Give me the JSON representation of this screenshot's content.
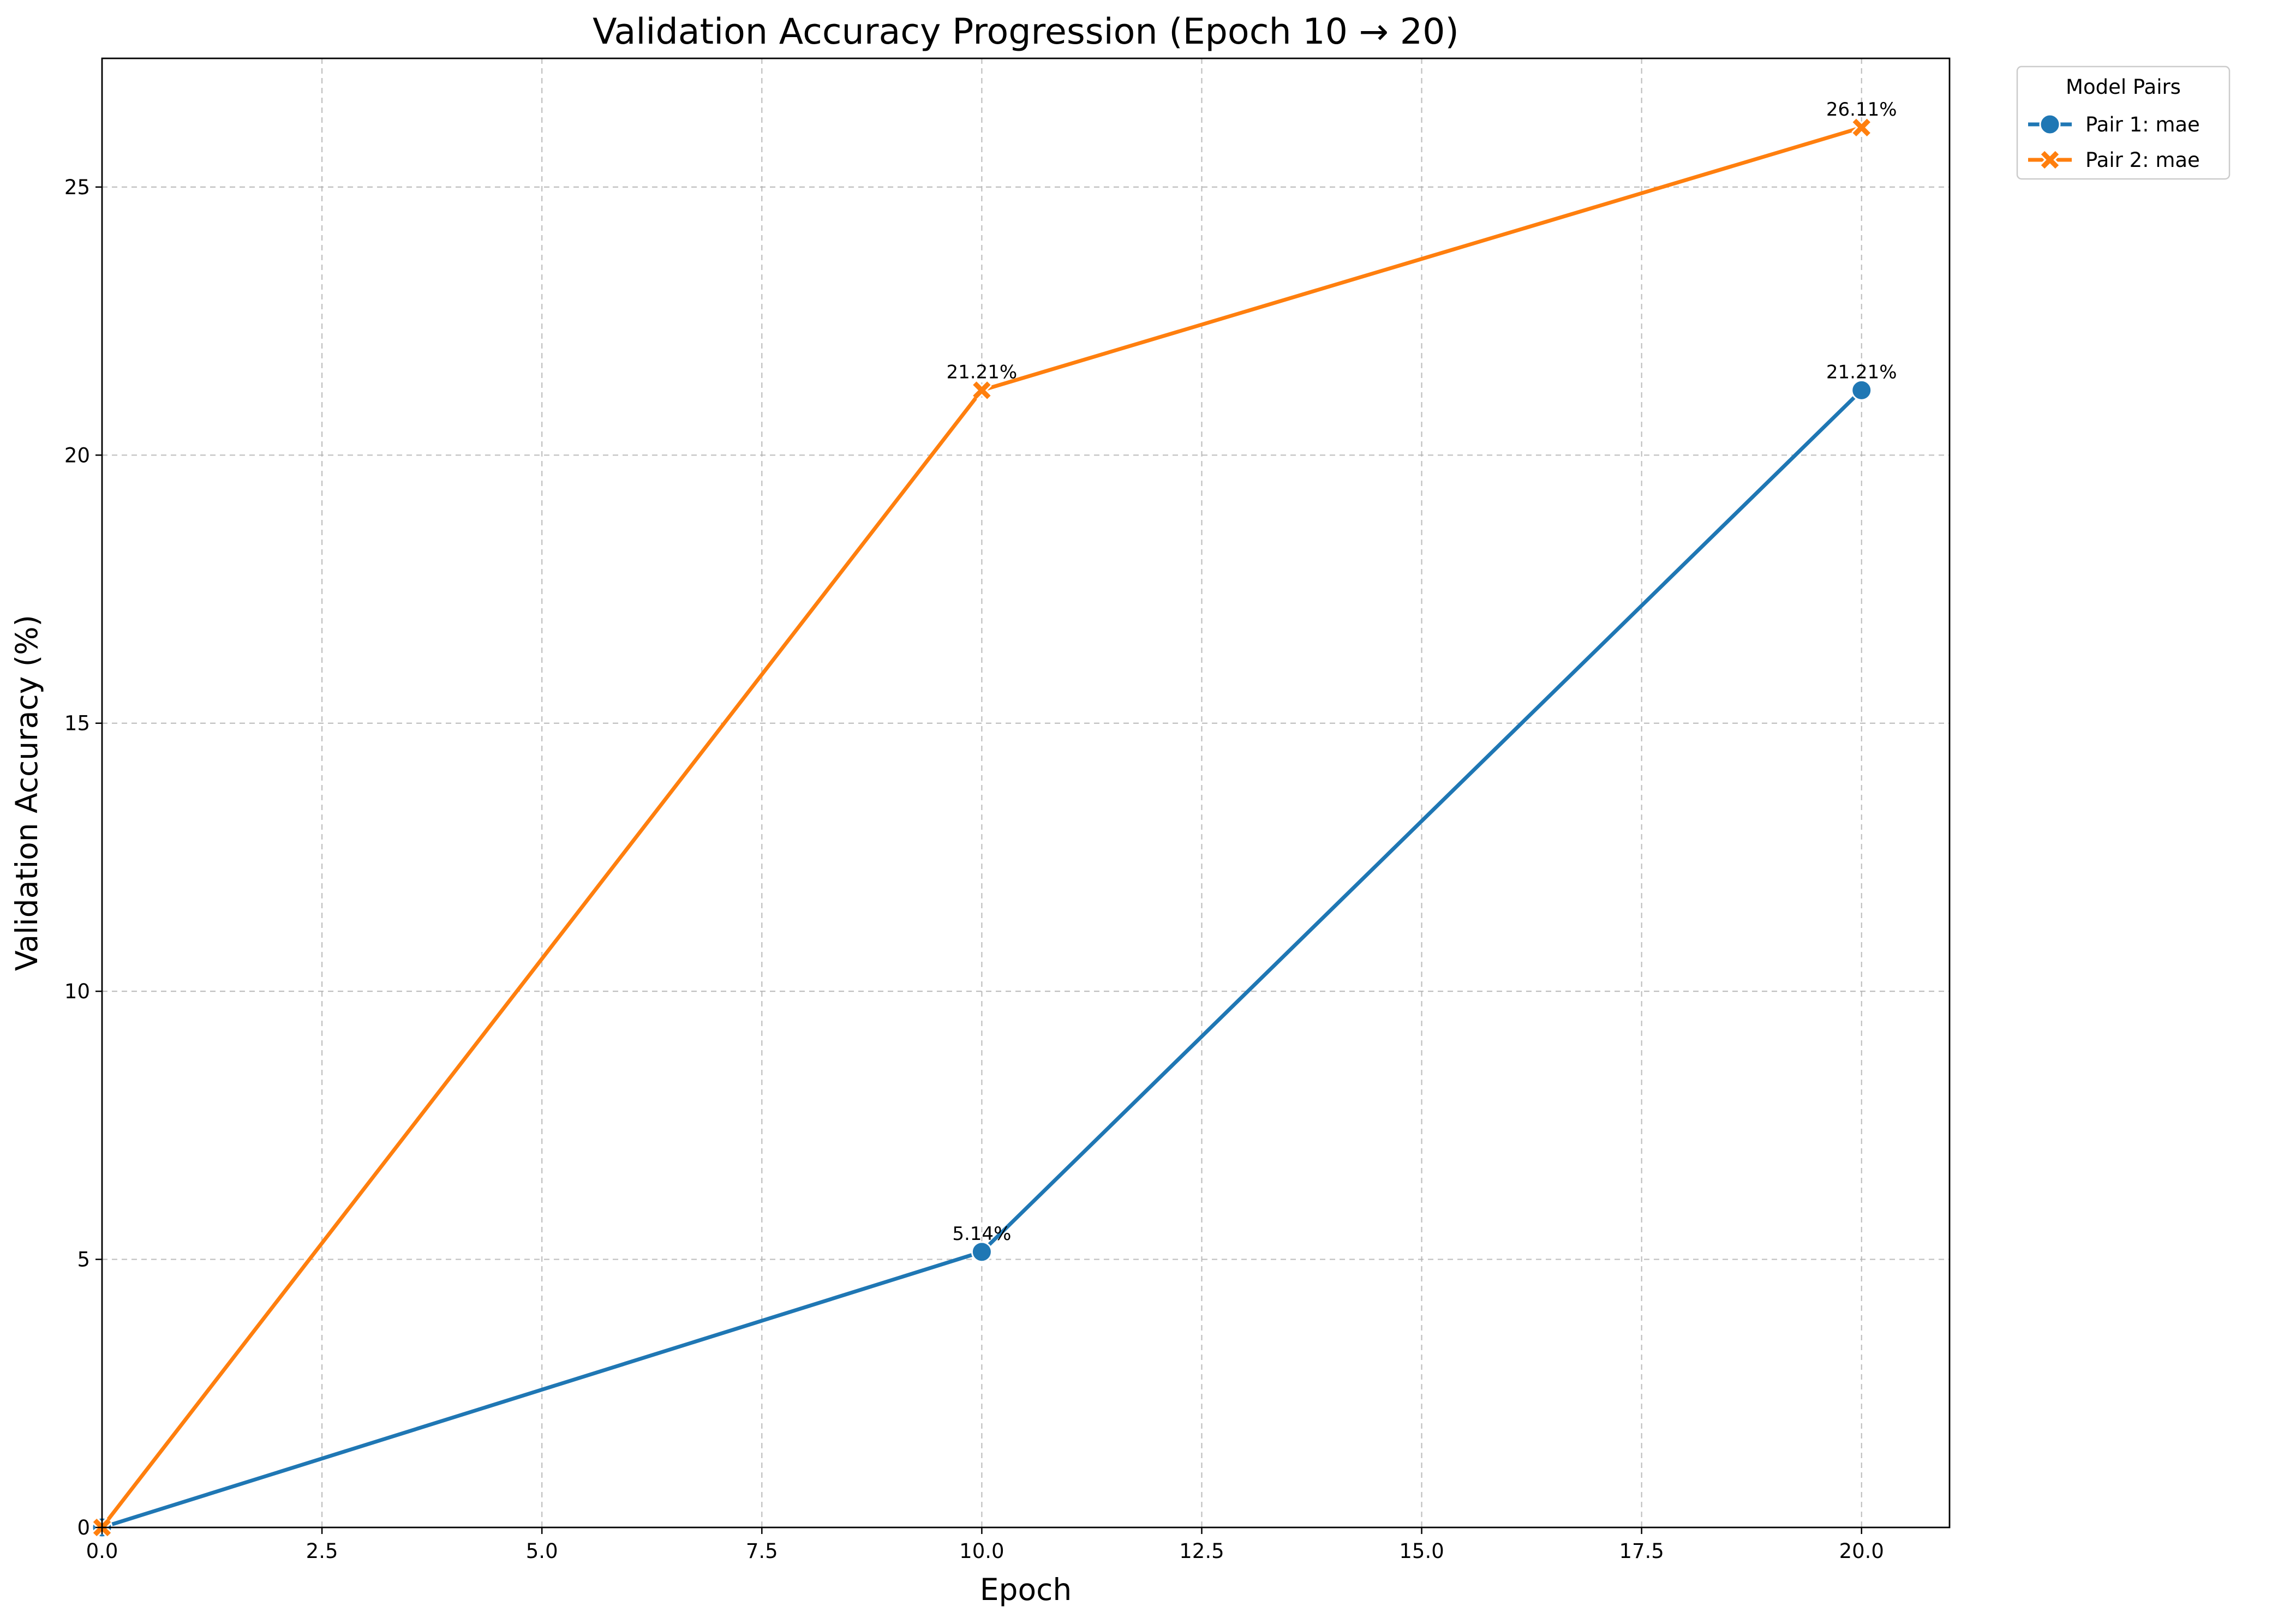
{
  "chart_data": {
    "type": "line",
    "title": "Validation Accuracy Progression (Epoch 10 → 20)",
    "xlabel": "Epoch",
    "ylabel": "Validation Accuracy (%)",
    "xlim": [
      0,
      21
    ],
    "ylim": [
      0,
      27.4
    ],
    "xticks": [
      0,
      2.5,
      5,
      7.5,
      10,
      12.5,
      15,
      17.5,
      20
    ],
    "xtick_labels": [
      "0.0",
      "2.5",
      "5.0",
      "7.5",
      "10.0",
      "12.5",
      "15.0",
      "17.5",
      "20.0"
    ],
    "yticks": [
      0,
      5,
      10,
      15,
      20,
      25
    ],
    "ytick_labels": [
      "0",
      "5",
      "10",
      "15",
      "20",
      "25"
    ],
    "grid": true,
    "legend": {
      "title": "Model Pairs",
      "placement": "outside-top-right"
    },
    "series": [
      {
        "name": "Pair 1: mae",
        "color": "#1f77b4",
        "marker": "circle",
        "x": [
          0,
          10,
          20
        ],
        "values": [
          0,
          5.14,
          21.21
        ],
        "point_labels": [
          "",
          "5.14%",
          "21.21%"
        ]
      },
      {
        "name": "Pair 2: mae",
        "color": "#ff7f0e",
        "marker": "x",
        "x": [
          0,
          10,
          20
        ],
        "values": [
          0,
          21.21,
          26.11
        ],
        "point_labels": [
          "",
          "21.21%",
          "26.11%"
        ]
      }
    ]
  }
}
